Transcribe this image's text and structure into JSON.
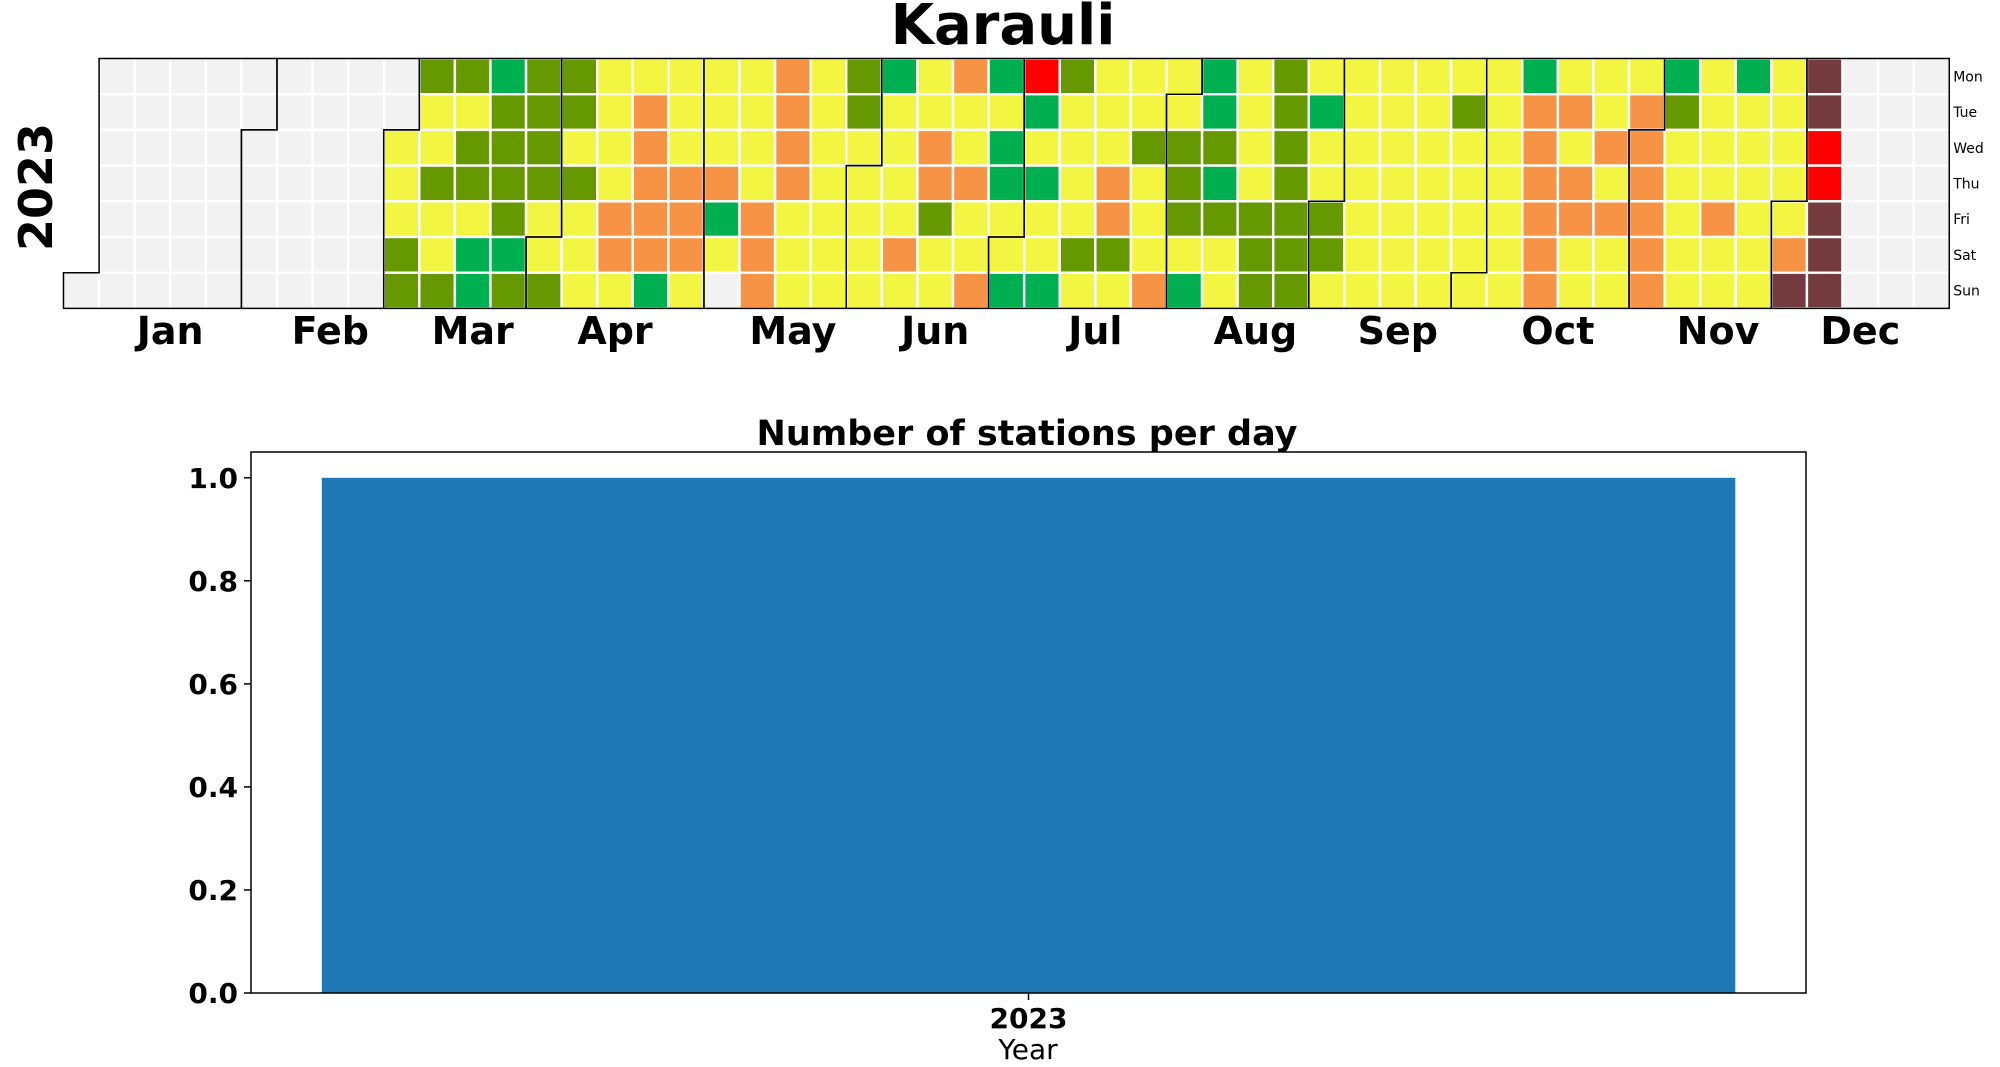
{
  "heatmap": {
    "title": "Karauli",
    "year_label": "2023",
    "months": [
      "Jan",
      "Feb",
      "Mar",
      "Apr",
      "May",
      "Jun",
      "Jul",
      "Aug",
      "Sep",
      "Oct",
      "Nov",
      "Dec"
    ],
    "weekdays": [
      "Mon",
      "Tue",
      "Wed",
      "Thu",
      "Fri",
      "Sat",
      "Sun"
    ]
  },
  "bar": {
    "title": "Number of stations per day",
    "xlabel": "Year",
    "yticks": [
      "0.0",
      "0.2",
      "0.4",
      "0.6",
      "0.8",
      "1.0"
    ]
  },
  "chart_data": [
    {
      "type": "heatmap",
      "title": "Karauli",
      "year": 2023,
      "first_data_date": "2023-03-01",
      "palette": {
        "none": "#f2f2f2",
        "A": "#00b050",
        "B": "#669900",
        "C": "#f2f542",
        "D": "#f79345",
        "E": "#ff0000",
        "F": "#733b3d"
      },
      "categories_by_week_from_2023-02-27": [
        "..CCCBB",
        "BCCBCCB",
        "BCBBCAA",
        "ABBBBAB",
        "BBBBCCB",
        "BBCBCCC",
        "CCCCDDC",
        "CDDDDDA",
        "CCCDDDC",
        "CCCDAC.",
        "CCCCDDD",
        "DDDDCCC",
        "CCCCCCC",
        "BBCCCCC",
        "ACCCCDC",
        "CCDDBCC",
        "DCCDCCD",
        "ACAACCA",
        "EACACCA",
        "BCCCCBC",
        "CCCDDBC",
        "CCBCCCD",
        "CCBBBCA",
        "AABABCC",
        "CCCCBBB",
        "BBBBBBB",
        "CACCBBC",
        "CCCCCCC",
        "CCCCCCC",
        "CCCCCCC",
        "CBCCCCC",
        "CCCCCCC",
        "ADDDDDD",
        "CDCDDCC",
        "CCDCDCC",
        "CDDDDDD",
        "ABCCCCC",
        "CCCCDCC",
        "ACCCCCC",
        "CCCCCDF",
        "FFEEFFF"
      ]
    },
    {
      "type": "bar",
      "title": "Number of stations per day",
      "categories": [
        "2023"
      ],
      "values": [
        1.0
      ],
      "xlabel": "Year",
      "ylabel": "",
      "ylim": [
        0,
        1.05
      ]
    }
  ]
}
